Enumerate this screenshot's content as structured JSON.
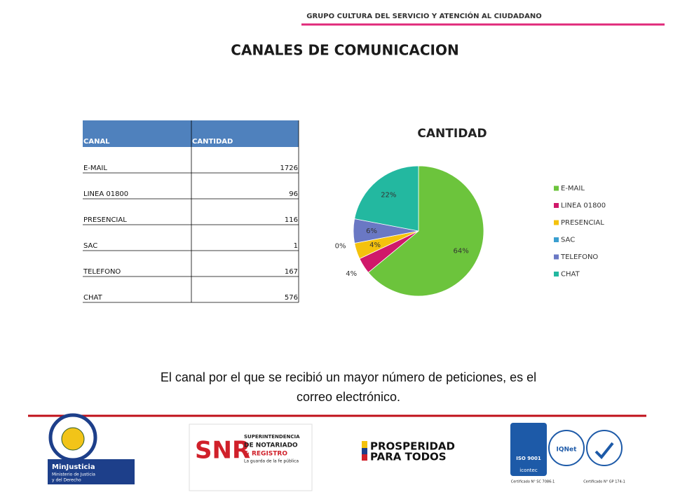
{
  "header": {
    "group": "GRUPO CULTURA DEL SERVICIO Y ATENCIÓN AL CIUDADANO",
    "title": "CANALES DE COMUNICACION"
  },
  "table": {
    "header": [
      "CANAL",
      "CANTIDAD"
    ],
    "rows": [
      [
        "E-MAIL",
        "1726"
      ],
      [
        "LINEA 01800",
        "96"
      ],
      [
        "PRESENCIAL",
        "116"
      ],
      [
        "SAC",
        "1"
      ],
      [
        "TELEFONO",
        "167"
      ],
      [
        "CHAT",
        "576"
      ]
    ]
  },
  "chart_data": {
    "type": "pie",
    "title": "CANTIDAD",
    "categories": [
      "E-MAIL",
      "LINEA 01800",
      "PRESENCIAL",
      "SAC",
      "TELEFONO",
      "CHAT"
    ],
    "values": [
      64,
      4,
      4,
      0,
      6,
      22
    ],
    "value_labels": [
      "64%",
      "4%",
      "4%",
      "0%",
      "6%",
      "22%"
    ],
    "colors": [
      "#6cc43c",
      "#d0186a",
      "#f4c20d",
      "#3a9fd0",
      "#6a78c4",
      "#23b8a0"
    ],
    "legend": "right"
  },
  "conclusion": [
    "El canal por el que se recibió un mayor número de peticiones, es el",
    "correo electrónico."
  ],
  "logos": {
    "minjusticia": [
      "MinJusticia",
      "Ministerio de Justicia",
      "y del Derecho"
    ],
    "snr": [
      "SNR",
      "SUPERINTENDENCIA",
      "DE NOTARIADO",
      "& REGISTRO",
      "La guarda de la fe pública"
    ],
    "prosperidad": [
      "PROSPERIDAD",
      "PARA TODOS"
    ],
    "certs": [
      "ISO 9001",
      "icontec",
      "IQNet",
      "Certificado N° SC 7086-1",
      "Certificado N° GP 174-1"
    ]
  }
}
